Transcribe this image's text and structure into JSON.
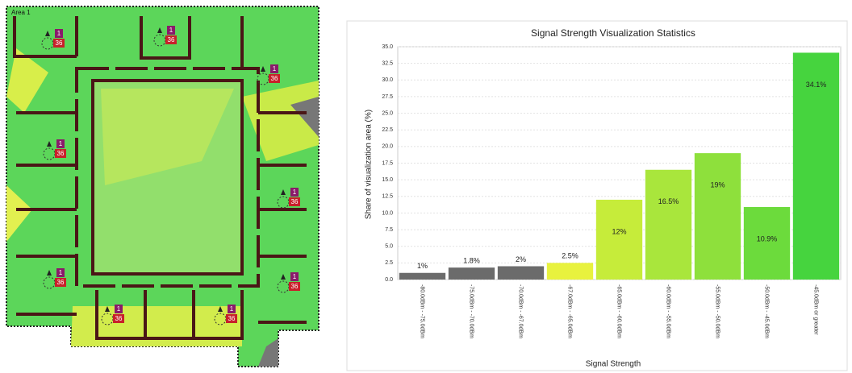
{
  "floor_plan": {
    "area_label": "Area 1",
    "access_points": [
      {
        "channel": "1",
        "label": "36"
      },
      {
        "channel": "1",
        "label": "36"
      },
      {
        "channel": "1",
        "label": "36"
      },
      {
        "channel": "1",
        "label": "36"
      },
      {
        "channel": "1",
        "label": "36"
      },
      {
        "channel": "1",
        "label": "36"
      },
      {
        "channel": "1",
        "label": "36"
      },
      {
        "channel": "1",
        "label": "36"
      },
      {
        "channel": "1",
        "label": "36"
      }
    ]
  },
  "chart_data": {
    "type": "bar",
    "title": "Signal Strength Visualization Statistics",
    "x_label": "Signal Strength",
    "y_label": "Share of visualization area (%)",
    "categories": [
      "-80.0dBm - -75.0dBm",
      "-75.0dBm - -70.0dBm",
      "-70.0dBm - -67.0dBm",
      "-67.0dBm - -65.0dBm",
      "-65.0dBm - -60.0dBm",
      "-60.0dBm - -55.0dBm",
      "-55.0dBm - -50.0dBm",
      "-50.0dBm - -45.0dBm",
      "-45.0dBm or greater"
    ],
    "values": [
      1,
      1.8,
      2,
      2.5,
      12,
      16.5,
      19,
      10.9,
      34.1
    ],
    "value_labels": [
      "1%",
      "1.8%",
      "2%",
      "2.5%",
      "12%",
      "16.5%",
      "19%",
      "10.9%",
      "34.1%"
    ],
    "colors": [
      "#6b6b6b",
      "#6b6b6b",
      "#6b6b6b",
      "#e8f23e",
      "#c6ec3a",
      "#a9e63c",
      "#8ee03c",
      "#6cdb3c",
      "#46d43e"
    ],
    "ylim": [
      0,
      35
    ],
    "yticks": [
      {
        "value": 0,
        "label": "0.0"
      },
      {
        "value": 2.5,
        "label": "2.5"
      },
      {
        "value": 5,
        "label": "5.0"
      },
      {
        "value": 7.5,
        "label": "7.5"
      },
      {
        "value": 10,
        "label": "10.0"
      },
      {
        "value": 12.5,
        "label": "12.5"
      },
      {
        "value": 15,
        "label": "15.0"
      },
      {
        "value": 17.5,
        "label": "17.5"
      },
      {
        "value": 20,
        "label": "20.0"
      },
      {
        "value": 22.5,
        "label": "22.5"
      },
      {
        "value": 25,
        "label": "25.0"
      },
      {
        "value": 27.5,
        "label": "27.5"
      },
      {
        "value": 30,
        "label": "30.0"
      },
      {
        "value": 32.5,
        "label": "32.5"
      },
      {
        "value": 35,
        "label": "35.0"
      }
    ],
    "grid": true
  }
}
